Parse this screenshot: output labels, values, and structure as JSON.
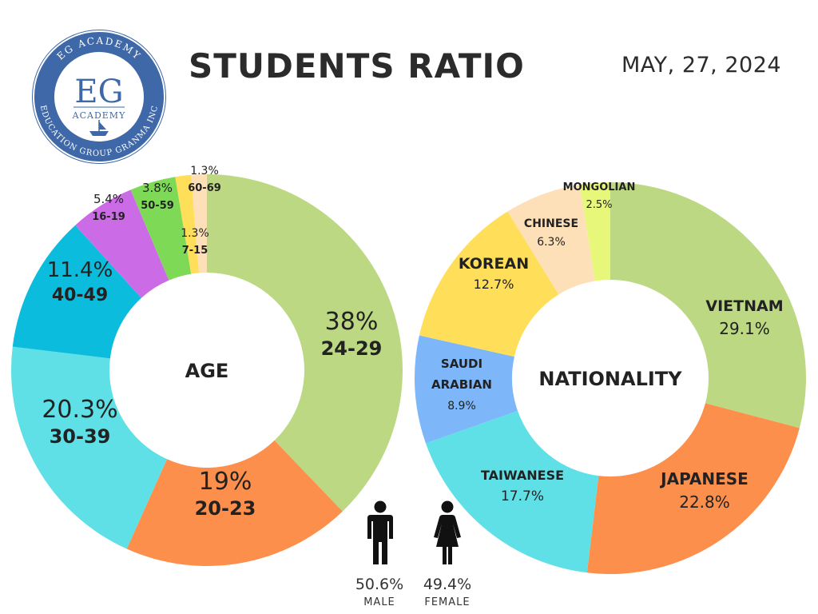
{
  "header": {
    "title": "STUDENTS RATIO",
    "date": "MAY, 27, 2024"
  },
  "logo": {
    "top_text": "EG ACADEMY",
    "monogram": "EG",
    "sub_text": "ACADEMY",
    "bottom_text": "EDUCATION GROUP GRANMA INC"
  },
  "chart_data": [
    {
      "type": "pie",
      "center_label": "AGE",
      "slices": [
        {
          "label": "24-29",
          "value_label": "38%",
          "value": 38,
          "color": "#bcd882"
        },
        {
          "label": "20-23",
          "value_label": "19%",
          "value": 19,
          "color": "#fd8f4c"
        },
        {
          "label": "30-39",
          "value_label": "20.3%",
          "value": 20.3,
          "color": "#5ee0e6"
        },
        {
          "label": "40-49",
          "value_label": "11.4%",
          "value": 11.4,
          "color": "#0cbcdc"
        },
        {
          "label": "16-19",
          "value_label": "5.4%",
          "value": 5.4,
          "color": "#cb6ce6"
        },
        {
          "label": "50-59",
          "value_label": "3.8%",
          "value": 3.8,
          "color": "#7ed957"
        },
        {
          "label": "7-15",
          "value_label": "1.3%",
          "value": 1.3,
          "color": "#ffde59"
        },
        {
          "label": "60-69",
          "value_label": "1.3%",
          "value": 1.3,
          "color": "#fde0b8"
        }
      ]
    },
    {
      "type": "pie",
      "center_label": "NATIONALITY",
      "slices": [
        {
          "label": "VIETNAM",
          "value_label": "29.1%",
          "value": 29.1,
          "color": "#bcd882"
        },
        {
          "label": "JAPANESE",
          "value_label": "22.8%",
          "value": 22.8,
          "color": "#fd8f4c"
        },
        {
          "label": "TAIWANESE",
          "value_label": "17.7%",
          "value": 17.7,
          "color": "#5ee0e6"
        },
        {
          "label": "SAUDI ARABIAN",
          "value_label": "8.9%",
          "value": 8.9,
          "color": "#7db7f9"
        },
        {
          "label": "KOREAN",
          "value_label": "12.7%",
          "value": 12.7,
          "color": "#ffde59"
        },
        {
          "label": "CHINESE",
          "value_label": "6.3%",
          "value": 6.3,
          "color": "#fde0b8"
        },
        {
          "label": "MONGOLIAN",
          "value_label": "2.5%",
          "value": 2.5,
          "color": "#e6f77a"
        }
      ]
    }
  ],
  "gender": {
    "male": {
      "pct": "50.6%",
      "label": "MALE",
      "icon": "male-icon"
    },
    "female": {
      "pct": "49.4%",
      "label": "FEMALE",
      "icon": "female-icon"
    }
  }
}
